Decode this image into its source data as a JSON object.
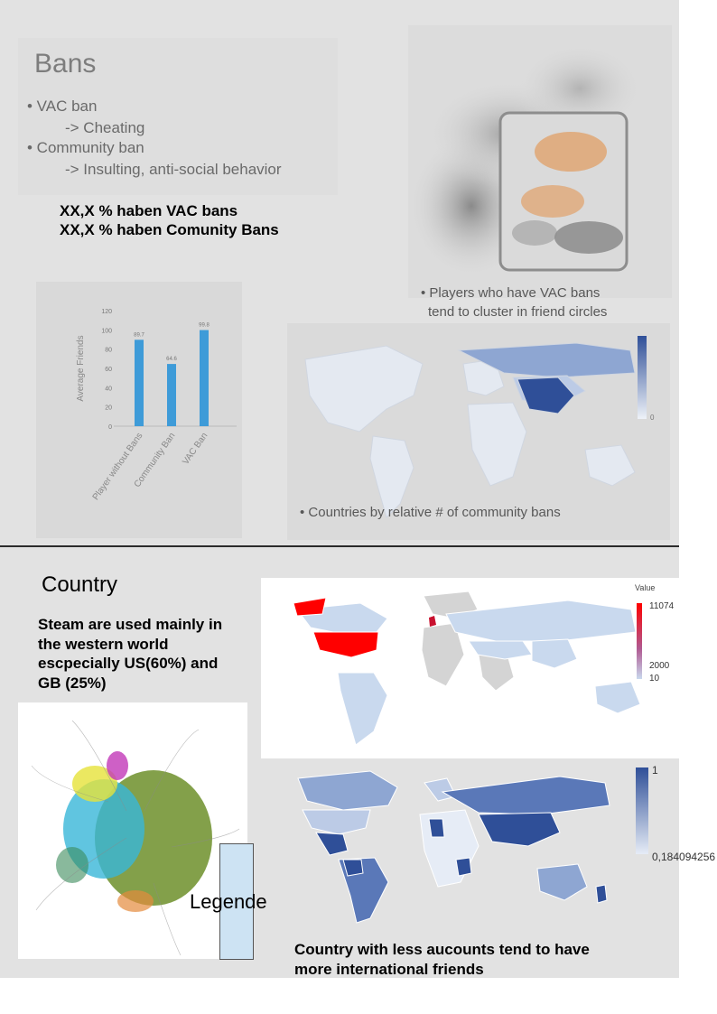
{
  "bans_slide": {
    "title": "Bans",
    "lines": [
      "• VAC ban",
      "-> Cheating",
      "• Community ban",
      "-> Insulting, anti-social behavior"
    ]
  },
  "stats": {
    "vac_line": "XX,X % haben VAC bans",
    "community_line": "XX,X % haben Comunity Bans"
  },
  "cluster": {
    "caption_line1": "• Players who have VAC bans",
    "caption_line2": "tend to cluster in friend circles"
  },
  "community_map": {
    "caption": "• Countries by relative # of community bans",
    "scale_min": "0"
  },
  "country": {
    "title": "Country",
    "steam_lines": [
      "Steam are used mainly in",
      "the western world",
      "escpecially US(60%) and",
      "GB (25%)"
    ],
    "legend_label": "Legende",
    "bottom_caption_line1": "Country with less aucounts tend to have",
    "bottom_caption_line2": "more international friends"
  },
  "value_map": {
    "legend_title": "Value",
    "ticks": [
      "11074",
      "2000",
      "10"
    ],
    "colors": {
      "high": "#ff0000",
      "low": "#c9d9ee"
    }
  },
  "friends_map": {
    "max_label": "1",
    "min_label": "0,184094256",
    "colors": {
      "high": "#2f4f98",
      "low": "#e6ecf6"
    }
  },
  "chart_data": {
    "type": "bar",
    "categories": [
      "Player without Bans",
      "Community Ban",
      "VAC Ban"
    ],
    "values": [
      89.7,
      64.6,
      99.8
    ],
    "ylabel": "Average Friends",
    "ylim": [
      0,
      120
    ],
    "yticks": [
      0,
      20,
      40,
      60,
      80,
      100,
      120
    ],
    "value_labels": [
      "89.7",
      "64.6",
      "99.8"
    ],
    "color": "#3e9bd8"
  }
}
